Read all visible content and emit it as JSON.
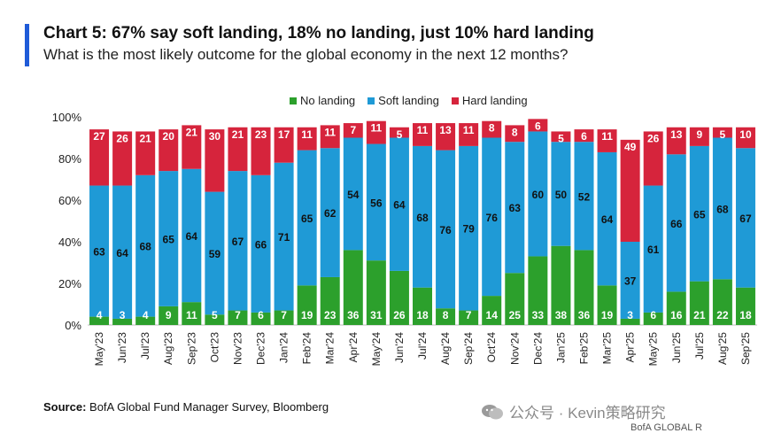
{
  "header": {
    "title": "Chart 5: 67% say soft landing, 18% no landing, just 10% hard landing",
    "subtitle": "What is the most likely outcome for the global economy in the next 12 months?"
  },
  "footer": {
    "source_label": "Source:",
    "source_text": "BofA Global Fund Manager Survey, Bloomberg",
    "watermark": "公众号 · Kevin策略研究",
    "bottom_text": "BofA GLOBAL R"
  },
  "colors": {
    "no_landing": "#2ca02c",
    "soft_landing": "#1f9ad6",
    "hard_landing": "#d6243c",
    "accent": "#1f5bd8"
  },
  "chart_data": {
    "type": "bar",
    "stacked": true,
    "legend_position": "top",
    "categories": [
      "May'23",
      "Jun'23",
      "Jul'23",
      "Aug'23",
      "Sep'23",
      "Oct'23",
      "Nov'23",
      "Dec'23",
      "Jan'24",
      "Feb'24",
      "Mar'24",
      "Apr'24",
      "May'24",
      "Jun'24",
      "Jul'24",
      "Aug'24",
      "Sep'24",
      "Oct'24",
      "Nov'24",
      "Dec'24",
      "Jan'25",
      "Feb'25",
      "Mar'25",
      "Apr'25",
      "May'25",
      "Jun'25",
      "Jul'25",
      "Aug'25",
      "Sep'25"
    ],
    "series": [
      {
        "name": "No landing",
        "values": [
          4,
          3,
          4,
          9,
          11,
          5,
          7,
          6,
          7,
          19,
          23,
          36,
          31,
          26,
          18,
          8,
          7,
          14,
          25,
          33,
          38,
          36,
          19,
          3,
          6,
          16,
          21,
          22,
          18
        ]
      },
      {
        "name": "Soft landing",
        "values": [
          63,
          64,
          68,
          65,
          64,
          59,
          67,
          66,
          71,
          65,
          62,
          54,
          56,
          64,
          68,
          76,
          79,
          76,
          63,
          60,
          50,
          52,
          64,
          37,
          61,
          66,
          65,
          68,
          67
        ]
      },
      {
        "name": "Hard landing",
        "values": [
          27,
          26,
          21,
          20,
          21,
          30,
          21,
          23,
          17,
          11,
          11,
          7,
          11,
          5,
          11,
          13,
          11,
          8,
          8,
          6,
          5,
          6,
          11,
          49,
          26,
          13,
          9,
          5,
          10
        ]
      }
    ],
    "yticks": [
      "0%",
      "20%",
      "40%",
      "60%",
      "80%",
      "100%"
    ],
    "ylim": [
      0,
      100
    ],
    "grid": false
  }
}
